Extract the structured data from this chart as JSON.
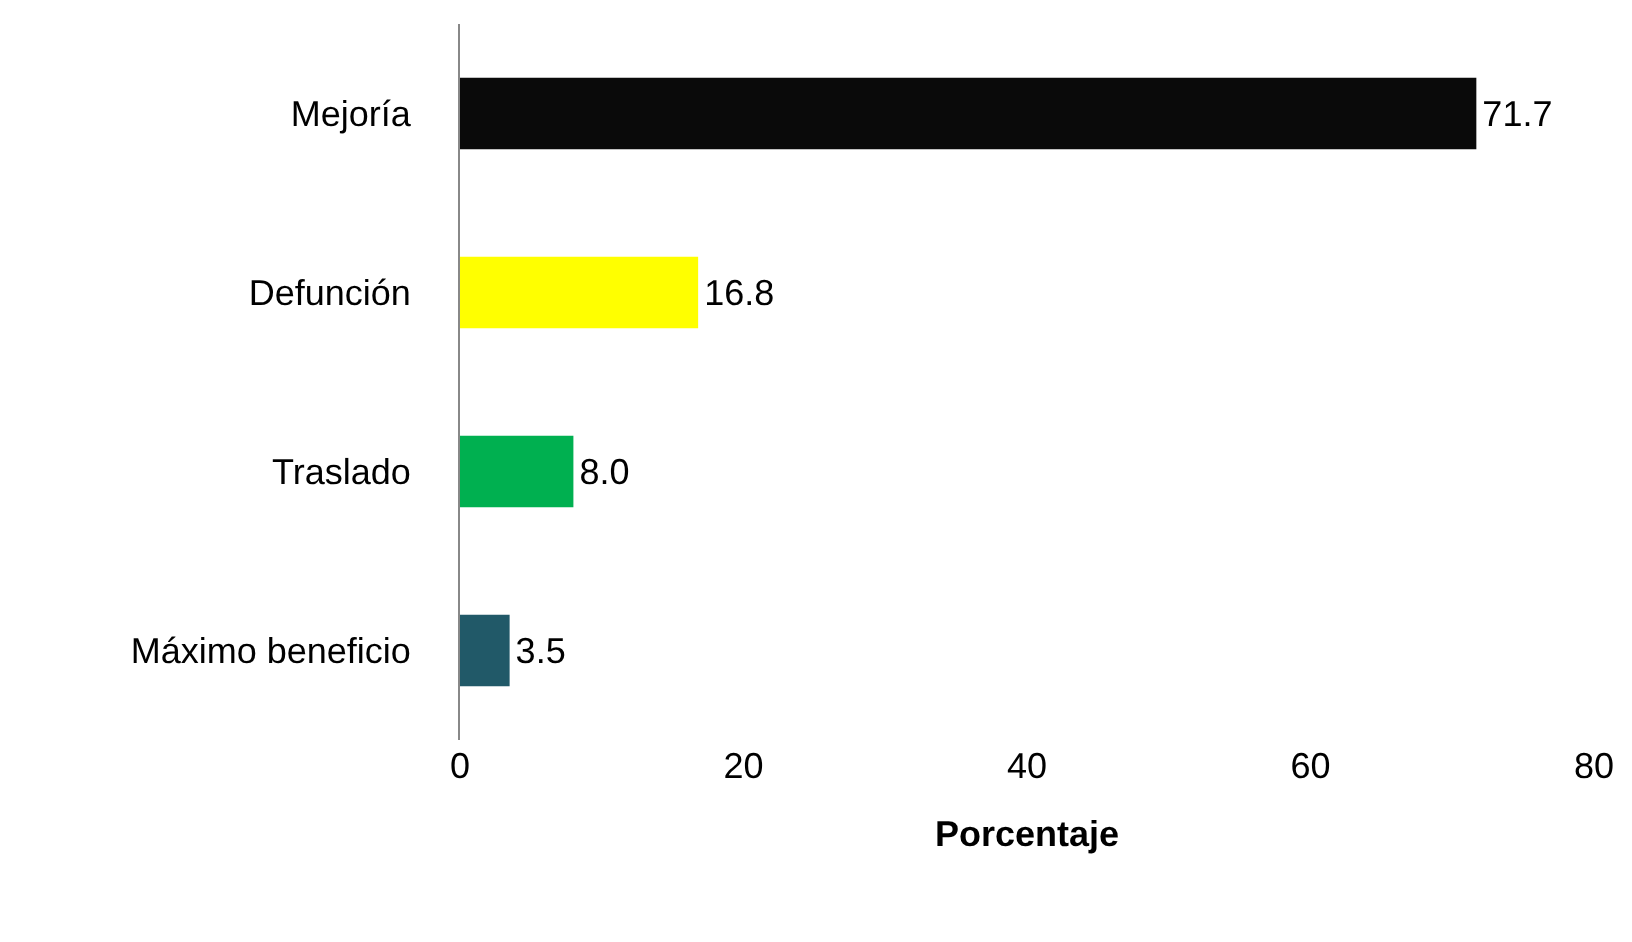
{
  "chart_data": {
    "type": "bar",
    "orientation": "horizontal",
    "xlabel": "Porcentaje",
    "categories": [
      "Mejoría",
      "Defunción",
      "Traslado",
      "Máximo beneficio"
    ],
    "values": [
      71.7,
      16.8,
      8.0,
      3.5
    ],
    "value_labels": [
      "71.7",
      "16.8",
      "8.0",
      "3.5"
    ],
    "colors": [
      "#0a0a0a",
      "#ffff00",
      "#00b050",
      "#215968"
    ],
    "xlim": [
      0,
      80
    ],
    "xticks": [
      0,
      20,
      40,
      60,
      80
    ],
    "grid": false
  }
}
